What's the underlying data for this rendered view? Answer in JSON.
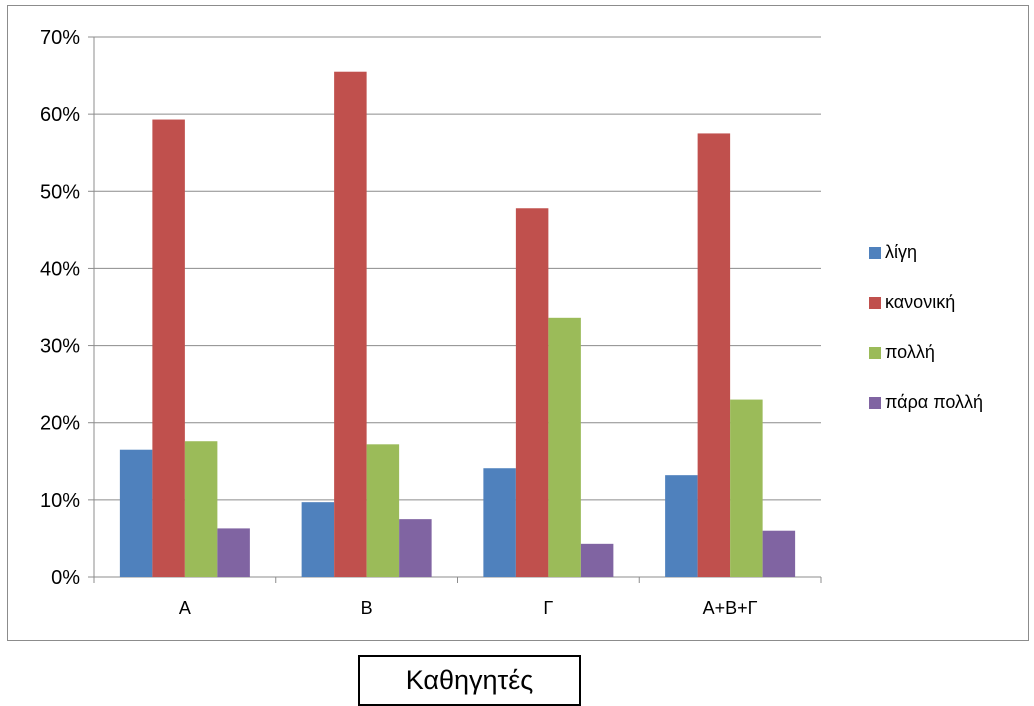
{
  "chart_data": {
    "type": "bar",
    "categories": [
      "A",
      "B",
      "Γ",
      "A+B+Γ"
    ],
    "series": [
      {
        "name": "λίγη",
        "color": "#4f81bd",
        "values": [
          16.5,
          9.7,
          14.1,
          13.2
        ]
      },
      {
        "name": "κανονική",
        "color": "#c0504d",
        "values": [
          59.3,
          65.5,
          47.8,
          57.5
        ]
      },
      {
        "name": "πολλή",
        "color": "#9bbb59",
        "values": [
          17.6,
          17.2,
          33.6,
          23.0
        ]
      },
      {
        "name": "πάρα πολλή",
        "color": "#8064a2",
        "values": [
          6.3,
          7.5,
          4.3,
          6.0
        ]
      }
    ],
    "ylim": [
      0,
      70
    ],
    "yticks": [
      "0%",
      "10%",
      "20%",
      "30%",
      "40%",
      "50%",
      "60%",
      "70%"
    ],
    "grid": true,
    "legend_position": "right"
  },
  "caption": "Καθηγητές"
}
